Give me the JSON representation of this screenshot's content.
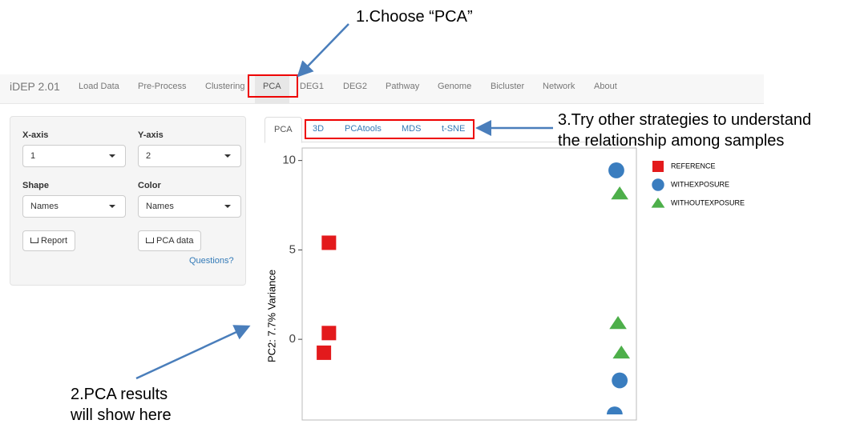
{
  "app": {
    "brand": "iDEP 2.01",
    "nav": [
      "Load Data",
      "Pre-Process",
      "Clustering",
      "PCA",
      "DEG1",
      "DEG2",
      "Pathway",
      "Genome",
      "Bicluster",
      "Network",
      "About"
    ],
    "active_nav": 3
  },
  "sidebar": {
    "x_label": "X-axis",
    "x_value": "1",
    "y_label": "Y-axis",
    "y_value": "2",
    "shape_label": "Shape",
    "shape_value": "Names",
    "color_label": "Color",
    "color_value": "Names",
    "report_button": "Report",
    "data_button": "PCA data",
    "help_link": "Questions?"
  },
  "tabs": [
    "PCA",
    "3D",
    "PCAtools",
    "MDS",
    "t-SNE"
  ],
  "annotations": {
    "step1": "1.Choose “PCA”",
    "step2": [
      "2.PCA results",
      "will show here"
    ],
    "step3": [
      "3.Try other strategies to understand",
      "the relationship among samples"
    ]
  },
  "chart_data": {
    "type": "scatter",
    "y_label": "PC2: 7.7% Variance",
    "xlim": [
      -10,
      10
    ],
    "ylim": [
      -4.2,
      10.7
    ],
    "yticks": [
      10,
      5,
      0
    ],
    "series": [
      {
        "name": "REFERENCE",
        "color": "#e31a1c",
        "marker": "square",
        "x": [
          -8.4,
          -8.4,
          -8.7
        ],
        "values": [
          5.4,
          0.35,
          -0.75
        ]
      },
      {
        "name": "WITHEXPOSURE",
        "color": "#3a7dbf",
        "marker": "circle",
        "x": [
          8.8,
          9.0,
          8.7
        ],
        "values": [
          9.45,
          -2.3,
          -4.2
        ]
      },
      {
        "name": "WITHOUTEXPOSURE",
        "color": "#4daf4a",
        "marker": "triangle",
        "x": [
          9.0,
          8.9,
          9.1
        ],
        "values": [
          8.15,
          0.9,
          -0.75
        ]
      }
    ]
  }
}
